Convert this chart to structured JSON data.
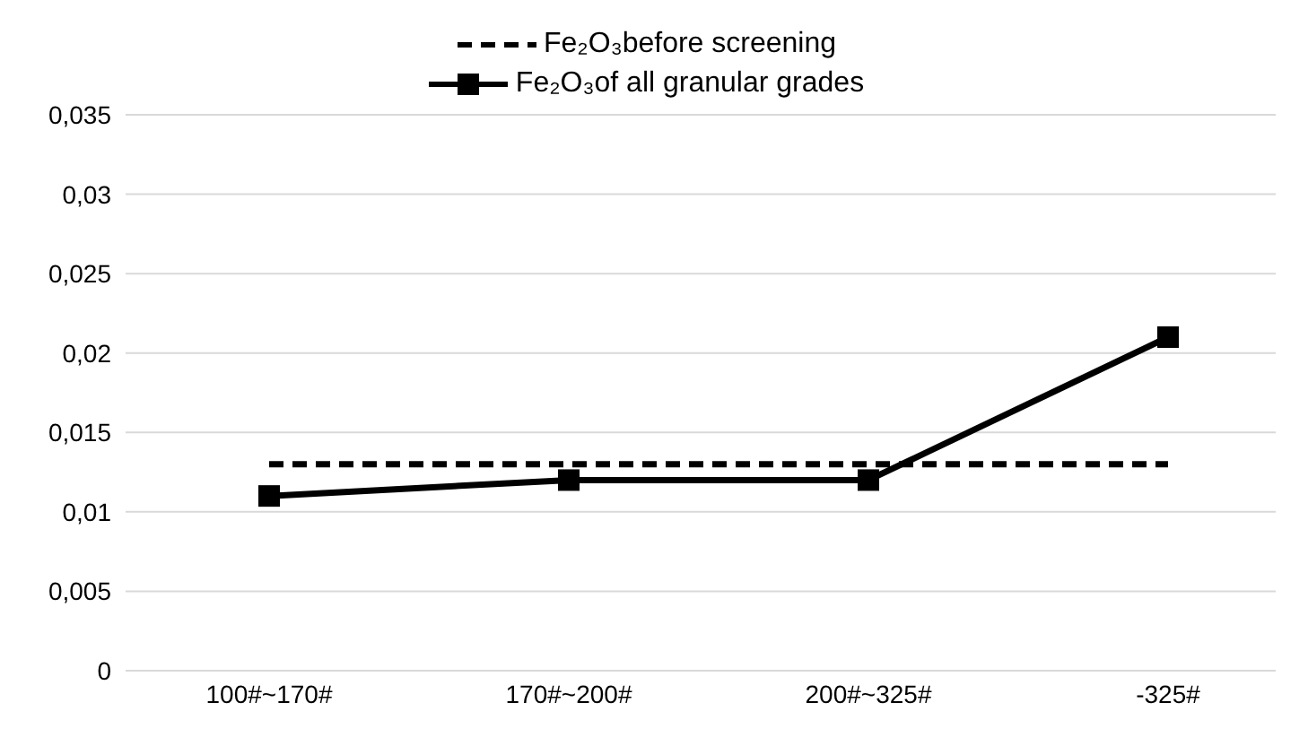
{
  "chart_data": {
    "type": "line",
    "categories": [
      "100#~170#",
      "170#~200#",
      "200#~325#",
      "-325#"
    ],
    "series": [
      {
        "name": "Fe₂O₃before screening",
        "color": "#000000",
        "line_style": "dashed",
        "marker": "none",
        "values": [
          0.013,
          0.013,
          0.013,
          0.013
        ]
      },
      {
        "name": "Fe₂O₃of all granular grades",
        "color": "#000000",
        "line_style": "solid",
        "marker": "square",
        "values": [
          0.011,
          0.012,
          0.012,
          0.021
        ]
      }
    ],
    "ylim": [
      0,
      0.035
    ],
    "yticks": [
      0,
      {
        "value": 0.005,
        "label": "0,005"
      },
      {
        "value": 0.01,
        "label": "0,01"
      },
      {
        "value": 0.015,
        "label": "0,015"
      },
      {
        "value": 0.02,
        "label": "0,02"
      },
      {
        "value": 0.025,
        "label": "0,025"
      },
      {
        "value": 0.03,
        "label": "0,03"
      },
      {
        "value": 0.035,
        "label": "0,035"
      }
    ],
    "grid": "y",
    "legend": "top"
  }
}
